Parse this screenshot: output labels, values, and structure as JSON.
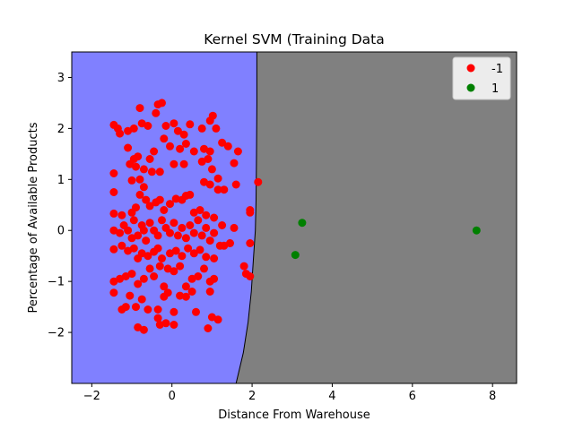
{
  "chart_data": {
    "type": "scatter",
    "title": "Kernel SVM (Training Data",
    "xlabel": "Distance From Warehouse",
    "ylabel": "Percentage of Available Products",
    "xlim": [
      -2.5,
      8.6
    ],
    "ylim": [
      -3.0,
      3.5
    ],
    "xticks": [
      "−2",
      "0",
      "2",
      "4",
      "6",
      "8"
    ],
    "yticks": [
      "−2",
      "−1",
      "0",
      "1",
      "2",
      "3"
    ],
    "xtick_values": [
      -2,
      0,
      2,
      4,
      6,
      8
    ],
    "ytick_values": [
      -2,
      -1,
      0,
      1,
      2,
      3
    ],
    "legend_position": "top-right",
    "regions": [
      {
        "class": "-1",
        "color": "#8080ff"
      },
      {
        "class": "1",
        "color": "#808080"
      }
    ],
    "decision_boundary": [
      [
        2.12,
        3.5
      ],
      [
        2.12,
        2.5
      ],
      [
        2.11,
        1.5
      ],
      [
        2.1,
        0.6
      ],
      [
        2.08,
        0.0
      ],
      [
        2.03,
        -0.6
      ],
      [
        1.98,
        -1.2
      ],
      [
        1.9,
        -1.8
      ],
      [
        1.78,
        -2.4
      ],
      [
        1.6,
        -3.0
      ]
    ],
    "series": [
      {
        "name": "-1",
        "color": "#ff0000",
        "points": [
          [
            -1.45,
            2.07
          ],
          [
            -1.35,
            2.0
          ],
          [
            -1.3,
            1.9
          ],
          [
            -1.1,
            1.95
          ],
          [
            -0.95,
            2.0
          ],
          [
            -0.8,
            2.4
          ],
          [
            -0.75,
            2.1
          ],
          [
            -0.6,
            2.05
          ],
          [
            -0.4,
            2.3
          ],
          [
            -0.35,
            2.47
          ],
          [
            -0.25,
            2.5
          ],
          [
            -0.15,
            2.05
          ],
          [
            0.05,
            2.1
          ],
          [
            0.15,
            1.95
          ],
          [
            0.3,
            1.88
          ],
          [
            0.45,
            2.08
          ],
          [
            0.75,
            2.0
          ],
          [
            0.95,
            2.15
          ],
          [
            1.02,
            2.25
          ],
          [
            1.1,
            2.0
          ],
          [
            -1.1,
            1.62
          ],
          [
            -1.05,
            1.3
          ],
          [
            -0.95,
            1.4
          ],
          [
            -0.85,
            1.45
          ],
          [
            -0.9,
            1.25
          ],
          [
            -0.7,
            1.2
          ],
          [
            -0.55,
            1.4
          ],
          [
            -0.45,
            1.55
          ],
          [
            -0.2,
            1.8
          ],
          [
            -0.05,
            1.65
          ],
          [
            0.2,
            1.6
          ],
          [
            0.35,
            1.7
          ],
          [
            0.55,
            1.55
          ],
          [
            0.8,
            1.6
          ],
          [
            0.95,
            1.55
          ],
          [
            1.25,
            1.72
          ],
          [
            1.4,
            1.65
          ],
          [
            1.65,
            1.55
          ],
          [
            1.55,
            1.32
          ],
          [
            -1.45,
            1.12
          ],
          [
            -1.45,
            0.75
          ],
          [
            -1.0,
            0.98
          ],
          [
            -0.8,
            1.0
          ],
          [
            -0.7,
            0.85
          ],
          [
            -0.5,
            1.15
          ],
          [
            -0.3,
            1.15
          ],
          [
            0.05,
            1.3
          ],
          [
            0.3,
            1.3
          ],
          [
            0.75,
            1.35
          ],
          [
            0.9,
            1.4
          ],
          [
            1.0,
            1.2
          ],
          [
            0.8,
            0.95
          ],
          [
            0.95,
            0.9
          ],
          [
            1.15,
            0.8
          ],
          [
            1.3,
            0.8
          ],
          [
            1.15,
            1.02
          ],
          [
            1.6,
            0.9
          ],
          [
            2.15,
            0.95
          ],
          [
            -1.45,
            0.33
          ],
          [
            -1.25,
            0.3
          ],
          [
            -1.0,
            0.35
          ],
          [
            -0.9,
            0.45
          ],
          [
            -0.8,
            0.7
          ],
          [
            -0.65,
            0.6
          ],
          [
            -0.55,
            0.48
          ],
          [
            -0.4,
            0.55
          ],
          [
            -0.3,
            0.6
          ],
          [
            -0.2,
            0.4
          ],
          [
            -0.05,
            0.52
          ],
          [
            0.1,
            0.62
          ],
          [
            0.25,
            0.6
          ],
          [
            0.35,
            0.68
          ],
          [
            0.45,
            0.7
          ],
          [
            0.55,
            0.35
          ],
          [
            0.7,
            0.4
          ],
          [
            0.85,
            0.3
          ],
          [
            1.05,
            0.25
          ],
          [
            1.25,
            0.1
          ],
          [
            1.55,
            0.05
          ],
          [
            1.95,
            0.4
          ],
          [
            1.95,
            0.35
          ],
          [
            -1.45,
            0.0
          ],
          [
            -1.3,
            -0.05
          ],
          [
            -1.2,
            0.1
          ],
          [
            -1.1,
            0.0
          ],
          [
            -1.0,
            -0.15
          ],
          [
            -0.95,
            0.2
          ],
          [
            -0.85,
            -0.1
          ],
          [
            -0.75,
            0.1
          ],
          [
            -0.7,
            0.0
          ],
          [
            -0.65,
            -0.2
          ],
          [
            -0.55,
            0.15
          ],
          [
            -0.45,
            0.0
          ],
          [
            -0.35,
            -0.1
          ],
          [
            -0.25,
            0.2
          ],
          [
            -0.15,
            0.05
          ],
          [
            -0.05,
            -0.05
          ],
          [
            0.05,
            0.15
          ],
          [
            0.15,
            -0.1
          ],
          [
            0.25,
            0.05
          ],
          [
            0.35,
            -0.15
          ],
          [
            0.45,
            0.1
          ],
          [
            0.55,
            -0.05
          ],
          [
            0.65,
            0.2
          ],
          [
            0.75,
            -0.1
          ],
          [
            0.85,
            0.05
          ],
          [
            0.95,
            -0.2
          ],
          [
            1.05,
            -0.05
          ],
          [
            1.2,
            -0.3
          ],
          [
            1.45,
            -0.25
          ],
          [
            1.95,
            -0.25
          ],
          [
            -1.45,
            -0.37
          ],
          [
            -1.25,
            -0.3
          ],
          [
            -1.1,
            -0.4
          ],
          [
            -0.95,
            -0.35
          ],
          [
            -0.85,
            -0.55
          ],
          [
            -0.75,
            -0.45
          ],
          [
            -0.6,
            -0.5
          ],
          [
            -0.45,
            -0.42
          ],
          [
            -0.35,
            -0.35
          ],
          [
            -0.25,
            -0.55
          ],
          [
            -0.05,
            -0.45
          ],
          [
            0.1,
            -0.4
          ],
          [
            0.25,
            -0.5
          ],
          [
            0.4,
            -0.35
          ],
          [
            0.55,
            -0.45
          ],
          [
            0.7,
            -0.38
          ],
          [
            0.85,
            -0.52
          ],
          [
            1.05,
            -0.55
          ],
          [
            1.3,
            -0.3
          ],
          [
            -1.45,
            -1.0
          ],
          [
            -1.3,
            -0.95
          ],
          [
            -1.15,
            -0.9
          ],
          [
            -1.0,
            -0.85
          ],
          [
            -0.85,
            -1.05
          ],
          [
            -0.7,
            -0.95
          ],
          [
            -0.55,
            -0.75
          ],
          [
            -0.45,
            -0.9
          ],
          [
            -0.3,
            -0.7
          ],
          [
            -0.2,
            -1.1
          ],
          [
            -0.1,
            -0.75
          ],
          [
            0.05,
            -0.8
          ],
          [
            0.2,
            -0.7
          ],
          [
            0.35,
            -1.1
          ],
          [
            0.5,
            -0.95
          ],
          [
            0.65,
            -0.9
          ],
          [
            0.8,
            -0.75
          ],
          [
            0.95,
            -1.0
          ],
          [
            1.05,
            -0.95
          ],
          [
            1.8,
            -0.7
          ],
          [
            1.85,
            -0.85
          ],
          [
            1.95,
            -0.9
          ],
          [
            -1.45,
            -1.22
          ],
          [
            -1.25,
            -1.55
          ],
          [
            -1.15,
            -1.5
          ],
          [
            -1.05,
            -1.28
          ],
          [
            -0.9,
            -1.5
          ],
          [
            -0.75,
            -1.35
          ],
          [
            -0.6,
            -1.55
          ],
          [
            -0.35,
            -1.55
          ],
          [
            -0.2,
            -1.3
          ],
          [
            -0.1,
            -1.22
          ],
          [
            0.05,
            -1.6
          ],
          [
            0.2,
            -1.28
          ],
          [
            0.35,
            -1.3
          ],
          [
            0.5,
            -1.2
          ],
          [
            0.6,
            -1.6
          ],
          [
            0.95,
            -1.2
          ],
          [
            1.0,
            -1.7
          ],
          [
            1.15,
            -1.75
          ],
          [
            -0.85,
            -1.9
          ],
          [
            -0.7,
            -1.95
          ],
          [
            -0.35,
            -1.72
          ],
          [
            -0.3,
            -1.85
          ],
          [
            -0.15,
            -1.82
          ],
          [
            0.05,
            -1.85
          ],
          [
            0.9,
            -1.92
          ]
        ]
      },
      {
        "name": "1",
        "color": "#008000",
        "points": [
          [
            3.25,
            0.15
          ],
          [
            3.08,
            -0.48
          ],
          [
            7.6,
            0.0
          ]
        ]
      }
    ]
  }
}
